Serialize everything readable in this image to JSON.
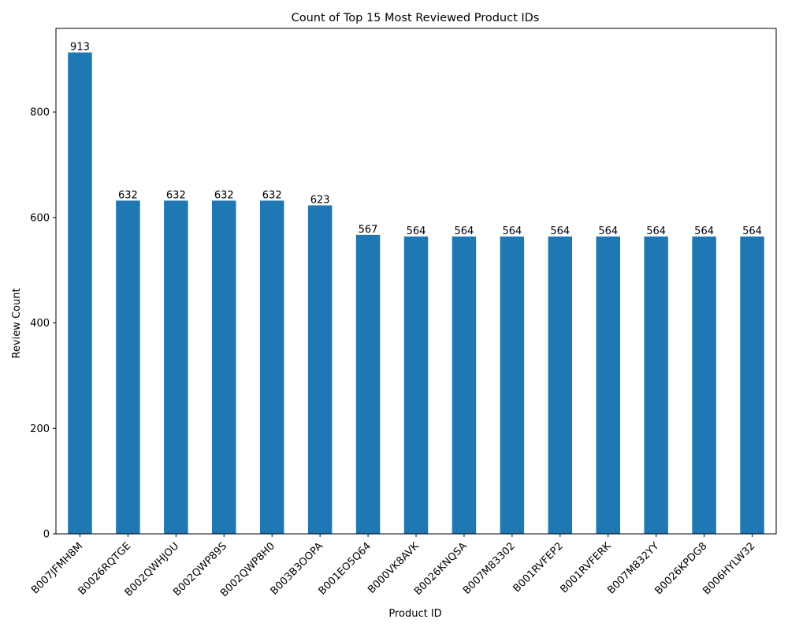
{
  "chart_data": {
    "type": "bar",
    "title": "Count of Top 15 Most Reviewed Product IDs",
    "xlabel": "Product ID",
    "ylabel": "Review Count",
    "categories": [
      "B007JFMH8M",
      "B0026RQTGE",
      "B002QWHJOU",
      "B002QWP89S",
      "B002QWP8H0",
      "B003B3OOPA",
      "B001EO5Q64",
      "B000VK8AVK",
      "B0026KNQSA",
      "B007M83302",
      "B001RVFEP2",
      "B001RVFERK",
      "B007M832YY",
      "B0026KPDG8",
      "B006HYLW32"
    ],
    "values": [
      913,
      632,
      632,
      632,
      632,
      623,
      567,
      564,
      564,
      564,
      564,
      564,
      564,
      564,
      564
    ],
    "ylim": [
      0,
      958.65
    ],
    "yticks": [
      0,
      200,
      400,
      600,
      800
    ],
    "bar_color": "#1f77b4",
    "data_labels": true,
    "x_tick_rotation": "45 degrees, right-aligned",
    "grid": false,
    "legend": "none"
  }
}
